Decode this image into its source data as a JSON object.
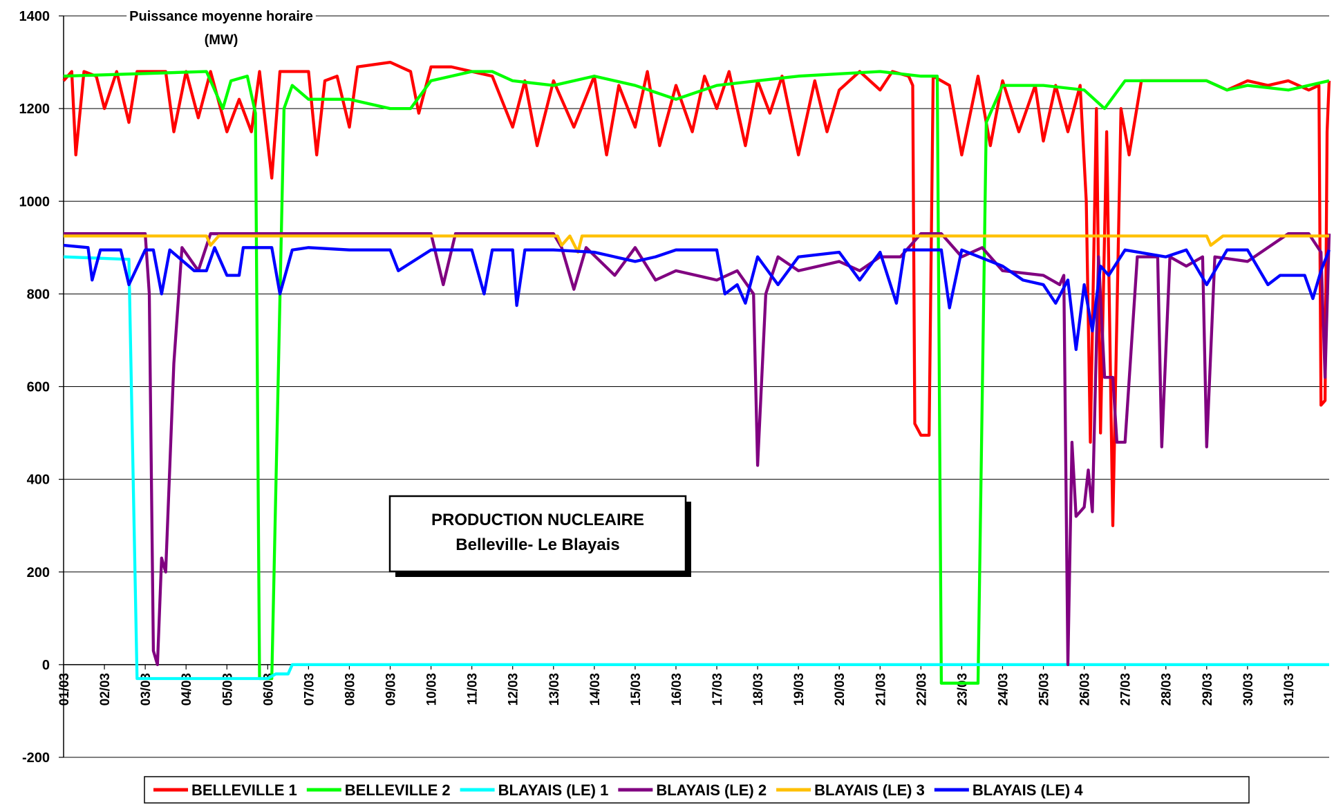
{
  "chart_data": {
    "type": "line",
    "ylabel": "Puissance moyenne horaire",
    "yunit": "(MW)",
    "annotation": [
      "PRODUCTION NUCLEAIRE",
      "Belleville- Le Blayais"
    ],
    "xlim": [
      0,
      31
    ],
    "ylim": [
      -200,
      1400
    ],
    "yticks": [
      -200,
      0,
      200,
      400,
      600,
      800,
      1000,
      1200,
      1400
    ],
    "xticks": [
      {
        "value": 0,
        "label": "01/03"
      },
      {
        "value": 1,
        "label": "02/03"
      },
      {
        "value": 2,
        "label": "03/03"
      },
      {
        "value": 3,
        "label": "04/03"
      },
      {
        "value": 4,
        "label": "05/03"
      },
      {
        "value": 5,
        "label": "06/03"
      },
      {
        "value": 6,
        "label": "07/03"
      },
      {
        "value": 7,
        "label": "08/03"
      },
      {
        "value": 8,
        "label": "09/03"
      },
      {
        "value": 9,
        "label": "10/03"
      },
      {
        "value": 10,
        "label": "11/03"
      },
      {
        "value": 11,
        "label": "12/03"
      },
      {
        "value": 12,
        "label": "13/03"
      },
      {
        "value": 13,
        "label": "14/03"
      },
      {
        "value": 14,
        "label": "15/03"
      },
      {
        "value": 15,
        "label": "16/03"
      },
      {
        "value": 16,
        "label": "17/03"
      },
      {
        "value": 17,
        "label": "18/03"
      },
      {
        "value": 18,
        "label": "19/03"
      },
      {
        "value": 19,
        "label": "20/03"
      },
      {
        "value": 20,
        "label": "21/03"
      },
      {
        "value": 21,
        "label": "22/03"
      },
      {
        "value": 22,
        "label": "23/03"
      },
      {
        "value": 23,
        "label": "24/03"
      },
      {
        "value": 24,
        "label": "25/03"
      },
      {
        "value": 25,
        "label": "26/03"
      },
      {
        "value": 26,
        "label": "27/03"
      },
      {
        "value": 27,
        "label": "28/03"
      },
      {
        "value": 28,
        "label": "29/03"
      },
      {
        "value": 29,
        "label": "30/03"
      },
      {
        "value": 30,
        "label": "31/03"
      }
    ],
    "grid": true,
    "legend": "bottom",
    "series": [
      {
        "name": "BELLEVILLE 1",
        "color": "#ff0000",
        "x": [
          0,
          0.2,
          0.3,
          0.5,
          0.8,
          1,
          1.3,
          1.6,
          1.8,
          2.5,
          2.7,
          3,
          3.3,
          3.6,
          4,
          4.3,
          4.6,
          4.8,
          5.1,
          5.3,
          6,
          6.2,
          6.4,
          6.7,
          7,
          7.2,
          8,
          8.5,
          8.7,
          9,
          9.5,
          10,
          10.5,
          11,
          11.3,
          11.6,
          12,
          12.5,
          13,
          13.3,
          13.6,
          14,
          14.3,
          14.6,
          15,
          15.4,
          15.7,
          16,
          16.3,
          16.7,
          17,
          17.3,
          17.6,
          18,
          18.4,
          18.7,
          19,
          19.5,
          20,
          20.3,
          20.7,
          20.8,
          20.85,
          21,
          21.2,
          21.3,
          21.7,
          22,
          22.4,
          22.7,
          23,
          23.4,
          23.8,
          24,
          24.3,
          24.6,
          24.9,
          25.05,
          25.15,
          25.3,
          25.4,
          25.55,
          25.7,
          25.9,
          26.1,
          26.4,
          27,
          27.5,
          28,
          28.5,
          29,
          29.5,
          30,
          30.5,
          30.75,
          30.8,
          30.9,
          30.95,
          31
        ],
        "values": [
          1260,
          1280,
          1100,
          1280,
          1270,
          1200,
          1280,
          1170,
          1280,
          1280,
          1150,
          1280,
          1180,
          1280,
          1150,
          1220,
          1150,
          1280,
          1050,
          1280,
          1280,
          1100,
          1260,
          1270,
          1160,
          1290,
          1300,
          1280,
          1190,
          1290,
          1290,
          1280,
          1270,
          1160,
          1260,
          1120,
          1260,
          1160,
          1270,
          1100,
          1250,
          1160,
          1280,
          1120,
          1250,
          1150,
          1270,
          1200,
          1280,
          1120,
          1260,
          1190,
          1270,
          1100,
          1260,
          1150,
          1240,
          1280,
          1240,
          1280,
          1270,
          1250,
          520,
          495,
          495,
          1270,
          1250,
          1100,
          1270,
          1120,
          1260,
          1150,
          1250,
          1130,
          1250,
          1150,
          1250,
          1000,
          480,
          1200,
          500,
          1150,
          300,
          1200,
          1100,
          1260,
          1260,
          1260,
          1260,
          1240,
          1260,
          1250,
          1260,
          1240,
          1250,
          560,
          570,
          1150,
          1260
        ]
      },
      {
        "name": "BELLEVILLE 2",
        "color": "#00ff00",
        "x": [
          0,
          3.5,
          3.9,
          4.1,
          4.5,
          4.7,
          4.8,
          5.1,
          5.4,
          5.6,
          6,
          7,
          8,
          8.5,
          9,
          10,
          10.5,
          11,
          12,
          13,
          14,
          15,
          16,
          17,
          18,
          20,
          21,
          21.4,
          21.5,
          22,
          22.4,
          22.6,
          23,
          24,
          25,
          25.5,
          26,
          27,
          28,
          28.5,
          29,
          30,
          31
        ],
        "values": [
          1270,
          1280,
          1200,
          1260,
          1270,
          1190,
          -30,
          -30,
          1200,
          1250,
          1220,
          1220,
          1200,
          1200,
          1260,
          1280,
          1280,
          1260,
          1250,
          1270,
          1250,
          1220,
          1250,
          1260,
          1270,
          1280,
          1270,
          1270,
          -40,
          -40,
          -40,
          1170,
          1250,
          1250,
          1240,
          1200,
          1260,
          1260,
          1260,
          1240,
          1250,
          1240,
          1260
        ]
      },
      {
        "name": "BLAYAIS (LE) 1",
        "color": "#00ffff",
        "x": [
          0,
          1.5,
          1.6,
          1.8,
          5,
          5.2,
          5.5,
          5.6,
          31
        ],
        "values": [
          880,
          875,
          875,
          -30,
          -30,
          -20,
          -20,
          0,
          0
        ]
      },
      {
        "name": "BLAYAIS (LE) 2",
        "color": "#800080",
        "x": [
          0,
          2,
          2.1,
          2.2,
          2.3,
          2.4,
          2.5,
          2.7,
          2.9,
          3.3,
          3.6,
          5,
          8,
          9,
          9.3,
          9.6,
          12,
          12.2,
          12.5,
          12.8,
          13.5,
          14,
          14.5,
          15,
          16,
          16.5,
          16.9,
          17,
          17.2,
          17.5,
          18,
          19,
          19.5,
          20,
          20.5,
          21,
          21.5,
          22,
          22.5,
          23,
          24,
          24.4,
          24.5,
          24.6,
          24.7,
          24.8,
          25,
          25.1,
          25.2,
          25.35,
          25.5,
          25.7,
          25.8,
          26,
          26.3,
          26.8,
          26.9,
          27.1,
          27.5,
          27.9,
          28,
          28.2,
          29,
          30,
          30.5,
          30.8,
          30.9,
          31
        ],
        "values": [
          930,
          930,
          800,
          30,
          0,
          230,
          200,
          650,
          900,
          850,
          930,
          930,
          930,
          930,
          820,
          930,
          930,
          900,
          810,
          900,
          840,
          900,
          830,
          850,
          830,
          850,
          800,
          430,
          800,
          880,
          850,
          870,
          850,
          880,
          880,
          930,
          930,
          880,
          900,
          850,
          840,
          820,
          840,
          0,
          480,
          320,
          340,
          420,
          330,
          880,
          620,
          620,
          480,
          480,
          880,
          880,
          470,
          880,
          860,
          880,
          470,
          880,
          870,
          930,
          930,
          890,
          620,
          930
        ]
      },
      {
        "name": "BLAYAIS (LE) 3",
        "color": "#ffc000",
        "x": [
          0,
          3.5,
          3.6,
          3.8,
          12.1,
          12.2,
          12.4,
          12.6,
          12.7,
          28,
          28.1,
          28.4,
          31
        ],
        "values": [
          925,
          925,
          905,
          925,
          925,
          905,
          925,
          890,
          925,
          925,
          905,
          925,
          925
        ]
      },
      {
        "name": "BLAYAIS (LE) 4",
        "color": "#0000ff",
        "x": [
          0,
          0.6,
          0.7,
          0.9,
          1.4,
          1.6,
          2,
          2.2,
          2.4,
          2.6,
          3.2,
          3.5,
          3.7,
          4,
          4.3,
          4.4,
          5.1,
          5.3,
          5.6,
          6,
          7,
          8,
          8.2,
          9,
          10,
          10.3,
          10.5,
          11,
          11.1,
          11.3,
          12,
          13,
          13.5,
          14,
          14.5,
          15,
          16,
          16.2,
          16.5,
          16.7,
          17,
          17.5,
          18,
          19,
          19.5,
          20,
          20.4,
          20.6,
          21,
          21.5,
          21.7,
          22,
          23,
          23.5,
          24,
          24.3,
          24.6,
          24.8,
          25,
          25.2,
          25.4,
          25.6,
          26,
          27,
          27.5,
          28,
          28.5,
          29,
          29.5,
          29.8,
          30.4,
          30.6,
          30.8,
          31
        ],
        "values": [
          905,
          900,
          830,
          895,
          895,
          820,
          895,
          895,
          800,
          895,
          850,
          850,
          900,
          840,
          840,
          900,
          900,
          800,
          895,
          900,
          895,
          895,
          850,
          895,
          895,
          800,
          895,
          895,
          775,
          895,
          895,
          890,
          880,
          870,
          880,
          895,
          895,
          800,
          820,
          780,
          880,
          820,
          880,
          890,
          830,
          890,
          780,
          895,
          895,
          895,
          770,
          895,
          860,
          830,
          820,
          780,
          830,
          680,
          820,
          720,
          860,
          840,
          895,
          880,
          895,
          820,
          895,
          895,
          820,
          840,
          840,
          790,
          850,
          895
        ]
      }
    ]
  }
}
